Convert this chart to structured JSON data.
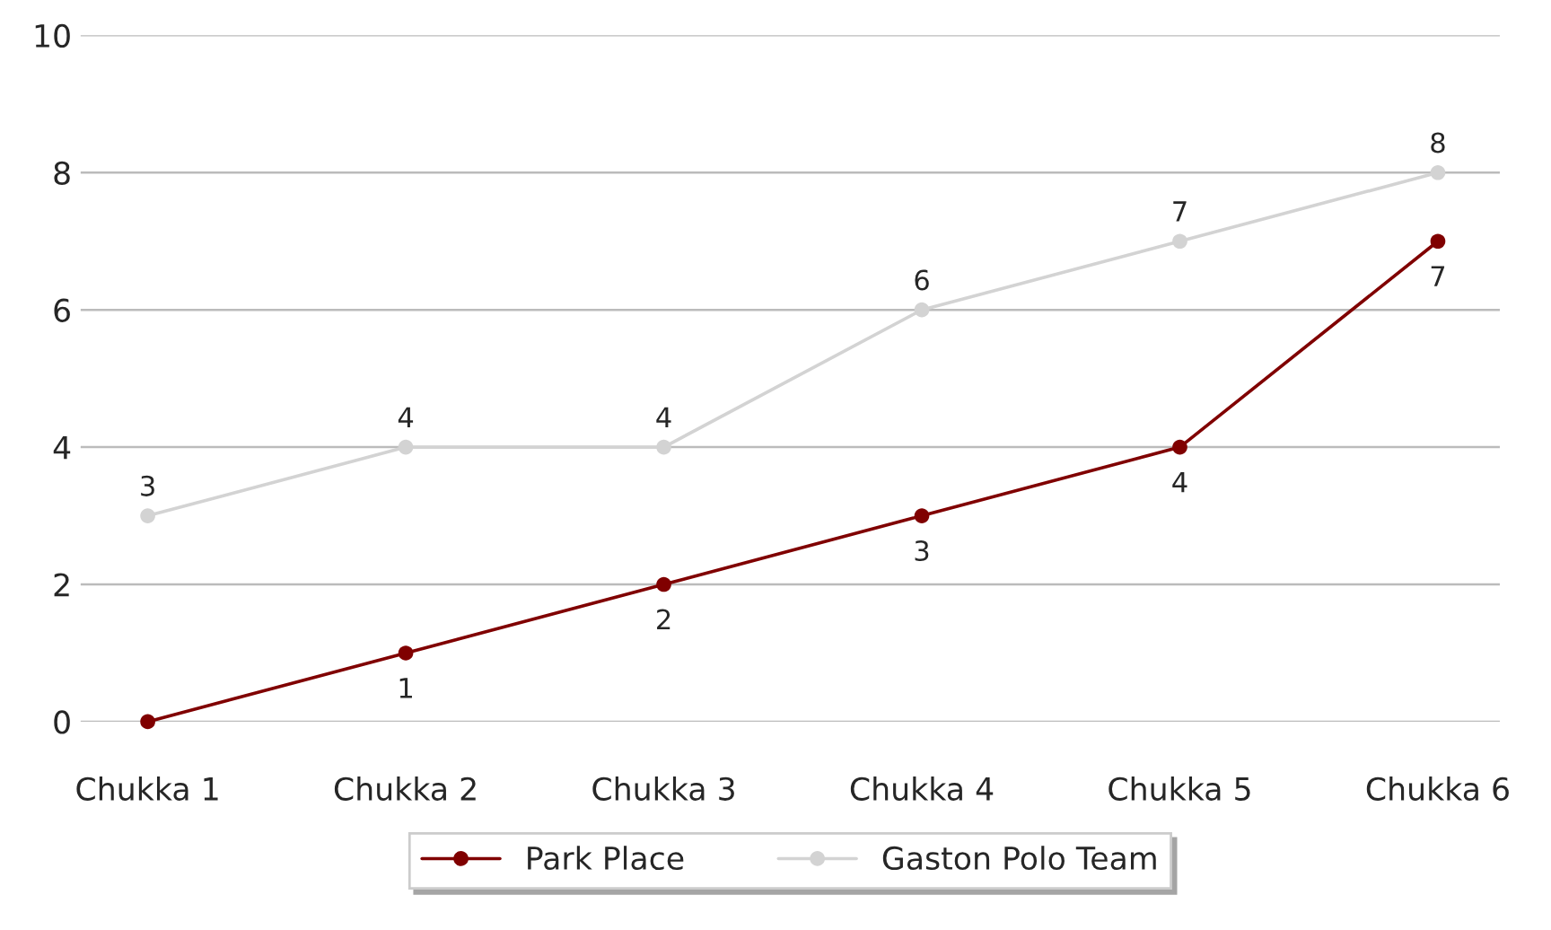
{
  "chart_data": {
    "type": "line",
    "categories": [
      "Chukka 1",
      "Chukka 2",
      "Chukka 3",
      "Chukka 4",
      "Chukka 5",
      "Chukka 6"
    ],
    "series": [
      {
        "name": "Park Place",
        "color": "#800000",
        "values": [
          0,
          1,
          2,
          3,
          4,
          7
        ],
        "value_labels": [
          null,
          "1",
          "2",
          "3",
          "4",
          "7"
        ]
      },
      {
        "name": "Gaston Polo Team",
        "color": "#d3d3d3",
        "values": [
          3,
          4,
          4,
          6,
          7,
          8
        ],
        "value_labels": [
          "3",
          "4",
          "4",
          "6",
          "7",
          "8"
        ]
      }
    ],
    "ylim": [
      0,
      10
    ],
    "yticks": [
      0,
      2,
      4,
      6,
      8,
      10
    ],
    "grid": "y",
    "legend": "bottom",
    "marker": "circle",
    "line_style": "solid"
  }
}
